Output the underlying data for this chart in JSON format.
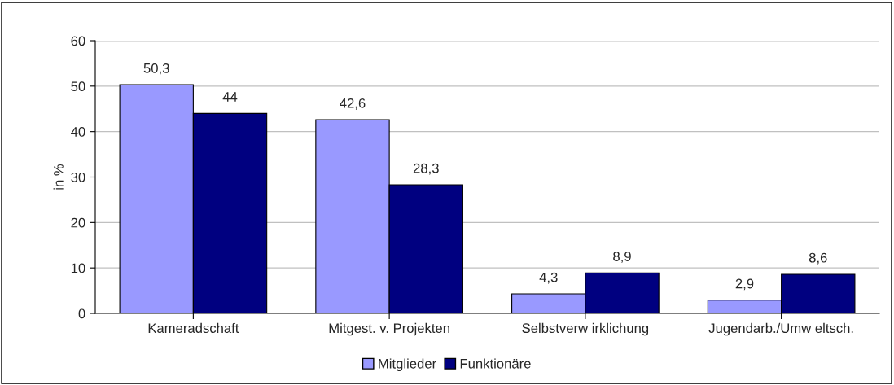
{
  "chart_data": {
    "type": "bar",
    "ylabel": "in %",
    "categories": [
      "Kameradschaft",
      "Mitgest. v. Projekten",
      "Selbstverw irklichung",
      "Jugendarb./Umw eltsch."
    ],
    "series": [
      {
        "name": "Mitglieder",
        "color": "#9999ff",
        "values": [
          50.3,
          42.6,
          4.3,
          2.9
        ],
        "value_labels": [
          "50,3",
          "42,6",
          "4,3",
          "2,9"
        ]
      },
      {
        "name": "Funktionäre",
        "color": "#000080",
        "values": [
          44,
          28.3,
          8.9,
          8.6
        ],
        "value_labels": [
          "44",
          "28,3",
          "8,9",
          "8,6"
        ]
      }
    ],
    "ylim": [
      0,
      60
    ],
    "yticks": [
      0,
      10,
      20,
      30,
      40,
      50,
      60
    ],
    "grid": "y",
    "legend": "bottom"
  }
}
